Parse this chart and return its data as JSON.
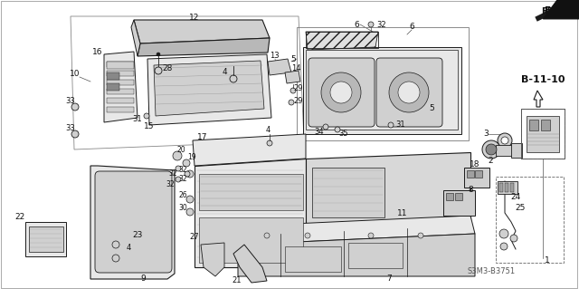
{
  "background_color": "#ffffff",
  "diagram_ref": "S3M3-B3751",
  "section_ref": "B-11-10",
  "fr_text": "FR.",
  "line_color": "#1a1a1a",
  "light_fill": "#e8e8e8",
  "mid_fill": "#d0d0d0",
  "dark_fill": "#a0a0a0",
  "hatch_fill": "#c8c8c8",
  "figsize": [
    6.4,
    3.19
  ],
  "dpi": 100,
  "img_path": null
}
